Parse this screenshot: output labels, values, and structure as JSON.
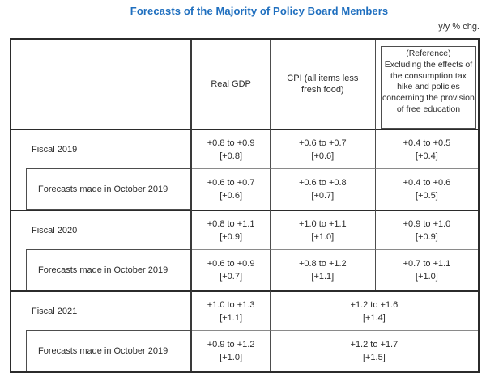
{
  "page": {
    "title": "Forecasts of the Majority of Policy Board Members",
    "unit_note": "y/y % chg.",
    "title_color": "#1f6fbf",
    "border_color": "#2b2b2b"
  },
  "table": {
    "columns": {
      "real_gdp": "Real GDP",
      "cpi": "CPI (all items less fresh food)",
      "reference_label": "(Reference)",
      "reference_desc": "Excluding the effects of the consumption tax hike and policies concerning the provision of free education"
    },
    "rows": [
      {
        "label": "Fiscal 2019",
        "real_gdp": {
          "range": "+0.8 to +0.9",
          "median": "[+0.8]"
        },
        "cpi": {
          "range": "+0.6 to +0.7",
          "median": "[+0.6]"
        },
        "reference": {
          "range": "+0.4 to +0.5",
          "median": "[+0.4]"
        }
      },
      {
        "label": "Forecasts made in October 2019",
        "real_gdp": {
          "range": "+0.6 to +0.7",
          "median": "[+0.6]"
        },
        "cpi": {
          "range": "+0.6 to +0.8",
          "median": "[+0.7]"
        },
        "reference": {
          "range": "+0.4 to +0.6",
          "median": "[+0.5]"
        }
      },
      {
        "label": "Fiscal 2020",
        "real_gdp": {
          "range": "+0.8 to +1.1",
          "median": "[+0.9]"
        },
        "cpi": {
          "range": "+1.0 to +1.1",
          "median": "[+1.0]"
        },
        "reference": {
          "range": "+0.9 to +1.0",
          "median": "[+0.9]"
        }
      },
      {
        "label": "Forecasts made in October 2019",
        "real_gdp": {
          "range": "+0.6 to +0.9",
          "median": "[+0.7]"
        },
        "cpi": {
          "range": "+0.8 to +1.2",
          "median": "[+1.1]"
        },
        "reference": {
          "range": "+0.7 to +1.1",
          "median": "[+1.0]"
        }
      },
      {
        "label": "Fiscal 2021",
        "real_gdp": {
          "range": "+1.0 to +1.3",
          "median": "[+1.1]"
        },
        "cpi_reference": {
          "range": "+1.2 to +1.6",
          "median": "[+1.4]"
        }
      },
      {
        "label": "Forecasts made in October 2019",
        "real_gdp": {
          "range": "+0.9 to +1.2",
          "median": "[+1.0]"
        },
        "cpi_reference": {
          "range": "+1.2 to +1.7",
          "median": "[+1.5]"
        }
      }
    ]
  }
}
